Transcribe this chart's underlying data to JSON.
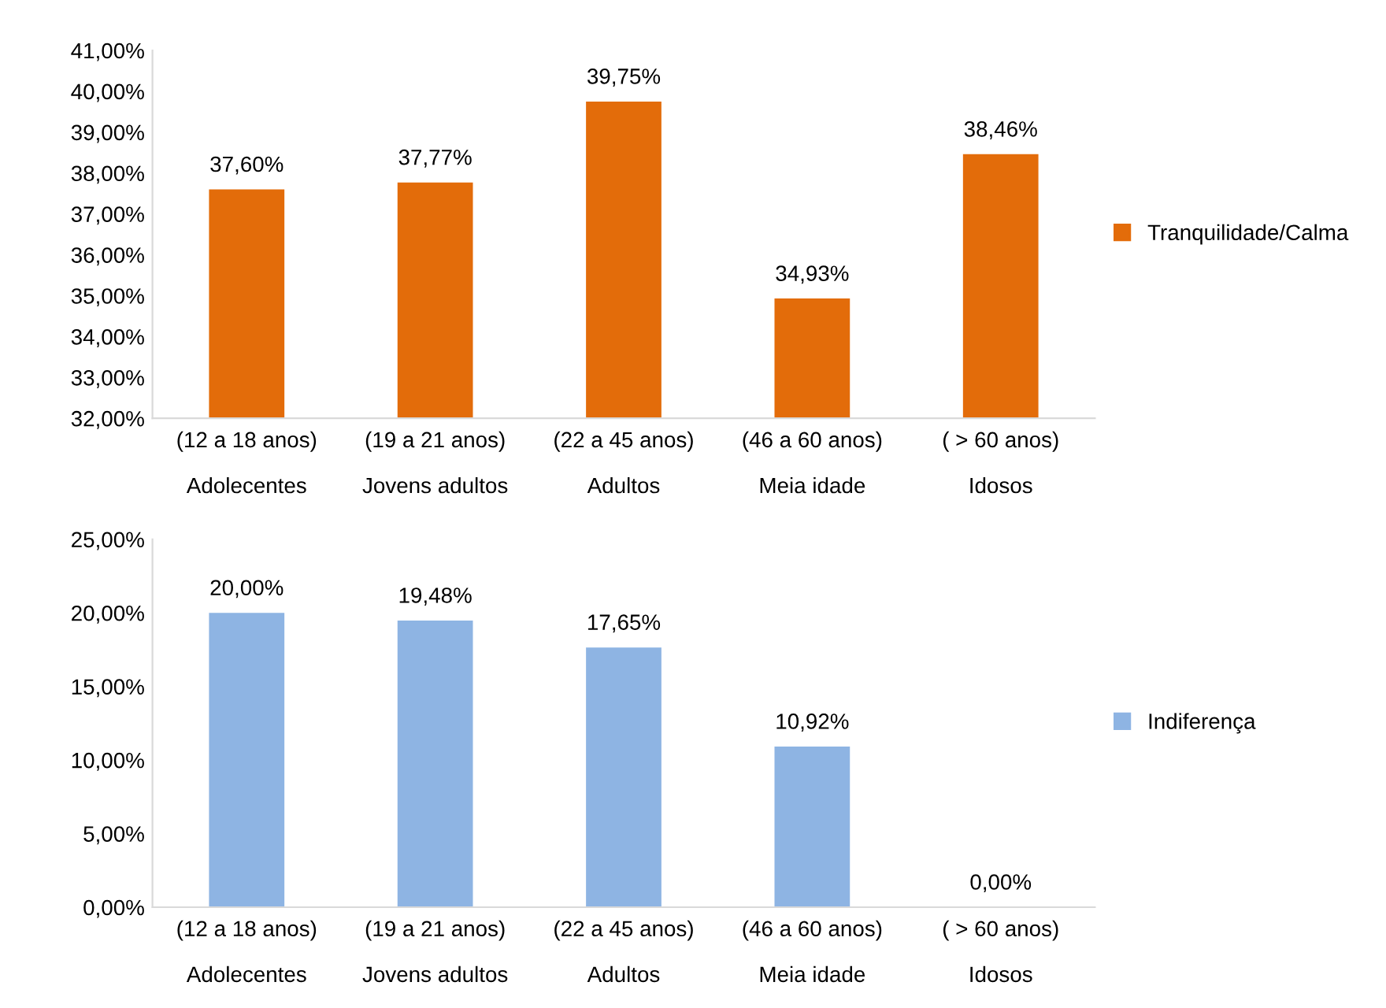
{
  "chart_data": [
    {
      "type": "bar",
      "categories": [
        "(12 a 18 anos)\nAdolecentes",
        "(19 a 21 anos)\nJovens adultos",
        "(22 a 45 anos)\nAdultos",
        "(46 a 60 anos)\nMeia idade",
        "( > 60 anos)\nIdosos"
      ],
      "series": [
        {
          "name": "Tranquilidade/Calma",
          "color": "#e36c0a",
          "values": [
            37.6,
            37.77,
            39.75,
            34.93,
            38.46
          ],
          "value_labels": [
            "37,60%",
            "37,77%",
            "39,75%",
            "34,93%",
            "38,46%"
          ]
        }
      ],
      "ylim": [
        32,
        41
      ],
      "yticks": [
        {
          "value": 32,
          "label": "32,00%"
        },
        {
          "value": 33,
          "label": "33,00%"
        },
        {
          "value": 34,
          "label": "34,00%"
        },
        {
          "value": 35,
          "label": "35,00%"
        },
        {
          "value": 36,
          "label": "36,00%"
        },
        {
          "value": 37,
          "label": "37,00%"
        },
        {
          "value": 38,
          "label": "38,00%"
        },
        {
          "value": 39,
          "label": "39,00%"
        },
        {
          "value": 40,
          "label": "40,00%"
        },
        {
          "value": 41,
          "label": "41,00%"
        }
      ],
      "legend": "right",
      "grid": false
    },
    {
      "type": "bar",
      "categories": [
        "(12 a 18 anos)\nAdolecentes",
        "(19 a 21 anos)\nJovens adultos",
        "(22 a 45 anos)\nAdultos",
        "(46 a 60 anos)\nMeia idade",
        "( > 60 anos)\nIdosos"
      ],
      "series": [
        {
          "name": "Indiferença",
          "color": "#8eb4e3",
          "values": [
            20.0,
            19.48,
            17.65,
            10.92,
            0.0
          ],
          "value_labels": [
            "20,00%",
            "19,48%",
            "17,65%",
            "10,92%",
            "0,00%"
          ]
        }
      ],
      "ylim": [
        0,
        25
      ],
      "yticks": [
        {
          "value": 0,
          "label": "0,00%"
        },
        {
          "value": 5,
          "label": "5,00%"
        },
        {
          "value": 10,
          "label": "10,00%"
        },
        {
          "value": 15,
          "label": "15,00%"
        },
        {
          "value": 20,
          "label": "20,00%"
        },
        {
          "value": 25,
          "label": "25,00%"
        }
      ],
      "legend": "right",
      "grid": false
    }
  ]
}
